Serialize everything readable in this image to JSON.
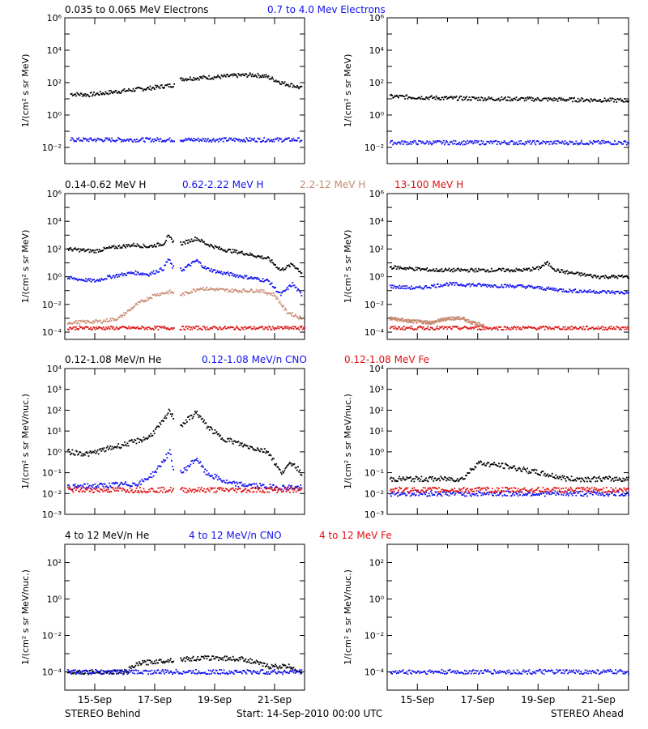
{
  "colors": {
    "black": "#000000",
    "blue": "#1010ee",
    "tan": "#c78a70",
    "red": "#e01010"
  },
  "footer": {
    "left": "STEREO Behind",
    "center": "Start: 14-Sep-2010 00:00 UTC",
    "right": "STEREO Ahead"
  },
  "chart_data": [
    {
      "type": "scatter",
      "panel": "electrons-behind",
      "scale": "log",
      "ylabel": "1/(cm² s sr MeV)",
      "ylim": [
        0.001,
        1000000
      ],
      "yticks": [
        "10⁶",
        "10⁴",
        "10²",
        "10⁰",
        "10⁻²"
      ],
      "xticks": [
        "15-Sep",
        "17-Sep",
        "19-Sep",
        "21-Sep"
      ],
      "series": [
        {
          "name": "0.035 to 0.065 MeV Electrons",
          "color": "#000000",
          "gap": [
            3.65,
            3.85
          ],
          "points": [
            [
              0.2,
              20
            ],
            [
              0.8,
              18
            ],
            [
              1.5,
              25
            ],
            [
              2.2,
              35
            ],
            [
              2.8,
              45
            ],
            [
              3.3,
              60
            ],
            [
              3.6,
              70
            ],
            [
              3.9,
              170
            ],
            [
              4.5,
              200
            ],
            [
              5.2,
              230
            ],
            [
              5.8,
              280
            ],
            [
              6.3,
              300
            ],
            [
              6.7,
              250
            ],
            [
              7.0,
              150
            ],
            [
              7.3,
              90
            ],
            [
              7.6,
              70
            ],
            [
              7.9,
              45
            ]
          ]
        },
        {
          "name": "0.7 to 4.0 Mev Electrons",
          "color": "#1010ee",
          "gap": [
            3.65,
            3.85
          ],
          "points": [
            [
              0.2,
              0.03
            ],
            [
              4,
              0.03
            ],
            [
              7.9,
              0.03
            ]
          ]
        }
      ]
    },
    {
      "type": "scatter",
      "panel": "electrons-ahead",
      "scale": "log",
      "ylabel": "1/(cm² s sr MeV)",
      "ylim": [
        0.001,
        1000000
      ],
      "yticks": [
        "10⁶",
        "10⁴",
        "10²",
        "10⁰",
        "10⁻²"
      ],
      "xticks": [
        "15-Sep",
        "17-Sep",
        "19-Sep",
        "21-Sep"
      ],
      "series": [
        {
          "color": "#000000",
          "points": [
            [
              0.1,
              14
            ],
            [
              2,
              11
            ],
            [
              4,
              10
            ],
            [
              6,
              9
            ],
            [
              8,
              8
            ]
          ]
        },
        {
          "color": "#1010ee",
          "points": [
            [
              0.1,
              0.02
            ],
            [
              8,
              0.02
            ]
          ]
        }
      ]
    },
    {
      "type": "scatter",
      "panel": "protons-behind",
      "scale": "log",
      "ylabel": "1/(cm² s sr MeV)",
      "ylim": [
        3e-05,
        1000000
      ],
      "yticks": [
        "10⁶",
        "10⁴",
        "10²",
        "10⁰",
        "10⁻²",
        "10⁻⁴"
      ],
      "xticks": [
        "15-Sep",
        "17-Sep",
        "19-Sep",
        "21-Sep"
      ],
      "series": [
        {
          "name": "0.14-0.62 MeV H",
          "color": "#000000",
          "gap": [
            3.65,
            3.85
          ],
          "points": [
            [
              0.1,
              100
            ],
            [
              1.0,
              70
            ],
            [
              1.5,
              120
            ],
            [
              2.3,
              200
            ],
            [
              2.8,
              150
            ],
            [
              3.3,
              250
            ],
            [
              3.45,
              800
            ],
            [
              3.6,
              400
            ],
            [
              3.9,
              250
            ],
            [
              4.4,
              600
            ],
            [
              4.7,
              250
            ],
            [
              5.2,
              100
            ],
            [
              6.0,
              50
            ],
            [
              6.8,
              20
            ],
            [
              7.2,
              3
            ],
            [
              7.6,
              8
            ],
            [
              7.9,
              2
            ]
          ]
        },
        {
          "name": "0.62-2.22 MeV H",
          "color": "#1010ee",
          "gap": [
            3.65,
            3.85
          ],
          "points": [
            [
              0.1,
              0.8
            ],
            [
              1.0,
              0.5
            ],
            [
              1.5,
              1
            ],
            [
              2.3,
              2
            ],
            [
              2.8,
              1.5
            ],
            [
              3.3,
              4
            ],
            [
              3.45,
              20
            ],
            [
              3.6,
              5
            ],
            [
              3.9,
              3
            ],
            [
              4.4,
              15
            ],
            [
              4.7,
              4
            ],
            [
              5.2,
              2
            ],
            [
              6.0,
              1
            ],
            [
              6.8,
              0.5
            ],
            [
              7.2,
              0.05
            ],
            [
              7.6,
              0.3
            ],
            [
              7.9,
              0.05
            ]
          ]
        },
        {
          "name": "2.2-12 MeV H",
          "color": "#c78a70",
          "gap": [
            3.65,
            3.85
          ],
          "points": [
            [
              0.1,
              0.0005
            ],
            [
              1.2,
              0.0006
            ],
            [
              1.8,
              0.001
            ],
            [
              2.4,
              0.01
            ],
            [
              3.0,
              0.05
            ],
            [
              3.5,
              0.08
            ],
            [
              3.9,
              0.05
            ],
            [
              4.5,
              0.15
            ],
            [
              5.5,
              0.1
            ],
            [
              6.5,
              0.1
            ],
            [
              7.0,
              0.05
            ],
            [
              7.4,
              0.003
            ],
            [
              7.9,
              0.001
            ]
          ]
        },
        {
          "name": "13-100 MeV H",
          "color": "#e01010",
          "gap": [
            3.65,
            3.85
          ],
          "points": [
            [
              0.1,
              0.0002
            ],
            [
              8,
              0.0002
            ]
          ]
        }
      ]
    },
    {
      "type": "scatter",
      "panel": "protons-ahead",
      "scale": "log",
      "ylabel": "1/(cm² s sr MeV)",
      "ylim": [
        3e-05,
        1000000
      ],
      "yticks": [
        "10⁶",
        "10⁴",
        "10²",
        "10⁰",
        "10⁻²",
        "10⁻⁴"
      ],
      "xticks": [
        "15-Sep",
        "17-Sep",
        "19-Sep",
        "21-Sep"
      ],
      "series": [
        {
          "color": "#000000",
          "points": [
            [
              0.1,
              5
            ],
            [
              1.5,
              3
            ],
            [
              3.0,
              3
            ],
            [
              4.5,
              3
            ],
            [
              5.0,
              4
            ],
            [
              5.3,
              10
            ],
            [
              5.6,
              3
            ],
            [
              6.0,
              2
            ],
            [
              7.0,
              1
            ],
            [
              8,
              1
            ]
          ]
        },
        {
          "color": "#1010ee",
          "points": [
            [
              0.1,
              0.2
            ],
            [
              1.0,
              0.15
            ],
            [
              2.0,
              0.3
            ],
            [
              3.0,
              0.25
            ],
            [
              4.5,
              0.2
            ],
            [
              6.0,
              0.1
            ],
            [
              8,
              0.07
            ]
          ]
        },
        {
          "color": "#c78a70",
          "points": [
            [
              0.1,
              0.001
            ],
            [
              0.8,
              0.0006
            ],
            [
              1.5,
              0.0005
            ],
            [
              2.0,
              0.001
            ],
            [
              2.5,
              0.001
            ],
            [
              2.8,
              0.0005
            ],
            [
              3.2,
              0.0003
            ]
          ]
        },
        {
          "color": "#e01010",
          "points": [
            [
              0.1,
              0.0002
            ],
            [
              8,
              0.0002
            ]
          ]
        }
      ]
    },
    {
      "type": "scatter",
      "panel": "heavy-low-behind",
      "scale": "log",
      "ylabel": "1/(cm² s sr MeV/nuc.)",
      "ylim": [
        0.001,
        10000
      ],
      "yticks": [
        "10⁴",
        "10³",
        "10²",
        "10¹",
        "10⁰",
        "10⁻¹",
        "10⁻²",
        "10⁻³"
      ],
      "xticks": [
        "15-Sep",
        "17-Sep",
        "19-Sep",
        "21-Sep"
      ],
      "series": [
        {
          "name": "0.12-1.08 MeV/n He",
          "color": "#000000",
          "gap": [
            3.65,
            3.85
          ],
          "points": [
            [
              0.1,
              1
            ],
            [
              0.8,
              0.8
            ],
            [
              1.5,
              1.5
            ],
            [
              2.3,
              3
            ],
            [
              2.8,
              5
            ],
            [
              3.3,
              30
            ],
            [
              3.5,
              100
            ],
            [
              3.6,
              50
            ],
            [
              3.9,
              20
            ],
            [
              4.4,
              80
            ],
            [
              4.7,
              20
            ],
            [
              5.2,
              5
            ],
            [
              6.0,
              2
            ],
            [
              6.8,
              1
            ],
            [
              7.2,
              0.1
            ],
            [
              7.6,
              0.3
            ],
            [
              7.9,
              0.1
            ]
          ]
        },
        {
          "name": "0.12-1.08 MeV/n CNO",
          "color": "#1010ee",
          "gap": [
            3.65,
            3.85
          ],
          "points": [
            [
              0.1,
              0.02
            ],
            [
              2.5,
              0.03
            ],
            [
              3.0,
              0.1
            ],
            [
              3.5,
              1
            ],
            [
              3.6,
              0.2
            ],
            [
              3.9,
              0.1
            ],
            [
              4.4,
              0.5
            ],
            [
              4.7,
              0.1
            ],
            [
              5.5,
              0.03
            ],
            [
              7,
              0.02
            ],
            [
              7.9,
              0.02
            ]
          ]
        },
        {
          "name": "0.12-1.08 MeV Fe",
          "color": "#e01010",
          "gap": [
            3.65,
            3.85
          ],
          "points": [
            [
              0.1,
              0.015
            ],
            [
              7.9,
              0.015
            ]
          ]
        }
      ]
    },
    {
      "type": "scatter",
      "panel": "heavy-low-ahead",
      "scale": "log",
      "ylabel": "1/(cm² s sr MeV/nuc.)",
      "ylim": [
        0.001,
        10000
      ],
      "yticks": [
        "10⁴",
        "10³",
        "10²",
        "10¹",
        "10⁰",
        "10⁻¹",
        "10⁻²",
        "10⁻³"
      ],
      "xticks": [
        "15-Sep",
        "17-Sep",
        "19-Sep",
        "21-Sep"
      ],
      "series": [
        {
          "color": "#000000",
          "points": [
            [
              0.1,
              0.05
            ],
            [
              2.5,
              0.05
            ],
            [
              3.0,
              0.3
            ],
            [
              4.0,
              0.2
            ],
            [
              5.0,
              0.1
            ],
            [
              6.0,
              0.05
            ],
            [
              8,
              0.05
            ]
          ]
        },
        {
          "color": "#1010ee",
          "points": [
            [
              0.1,
              0.01
            ],
            [
              8,
              0.01
            ]
          ]
        },
        {
          "color": "#e01010",
          "points": [
            [
              0.1,
              0.015
            ],
            [
              8,
              0.015
            ]
          ]
        }
      ]
    },
    {
      "type": "scatter",
      "panel": "heavy-high-behind",
      "scale": "log",
      "ylabel": "1/(cm² s sr MeV/nuc.)",
      "ylim": [
        1e-05,
        1000
      ],
      "yticks": [
        "10²",
        "10⁰",
        "10⁻²",
        "10⁻⁴"
      ],
      "xticks": [
        "15-Sep",
        "17-Sep",
        "19-Sep",
        "21-Sep"
      ],
      "series": [
        {
          "name": "4 to 12 MeV/n He",
          "color": "#000000",
          "gap": [
            3.65,
            3.85
          ],
          "points": [
            [
              0.1,
              0.0001
            ],
            [
              2.0,
              0.0001
            ],
            [
              2.5,
              0.0003
            ],
            [
              3.2,
              0.0004
            ],
            [
              3.9,
              0.0005
            ],
            [
              5.0,
              0.0006
            ],
            [
              6.0,
              0.0005
            ],
            [
              6.8,
              0.0002
            ],
            [
              7.5,
              0.0002
            ],
            [
              7.9,
              0.0001
            ]
          ]
        },
        {
          "name": "4 to 12 MeV/n CNO",
          "color": "#1010ee",
          "points": [
            [
              0.1,
              0.0001
            ],
            [
              7.9,
              0.0001
            ]
          ]
        },
        {
          "name": "4 to 12 MeV Fe",
          "color": "#e01010",
          "points": []
        }
      ]
    },
    {
      "type": "scatter",
      "panel": "heavy-high-ahead",
      "scale": "log",
      "ylabel": "1/(cm² s sr MeV/nuc.)",
      "ylim": [
        1e-05,
        1000
      ],
      "yticks": [
        "10²",
        "10⁰",
        "10⁻²",
        "10⁻⁴"
      ],
      "xticks": [
        "15-Sep",
        "17-Sep",
        "19-Sep",
        "21-Sep"
      ],
      "series": [
        {
          "color": "#1010ee",
          "points": [
            [
              0.1,
              0.0001
            ],
            [
              8,
              0.0001
            ]
          ]
        }
      ]
    }
  ]
}
